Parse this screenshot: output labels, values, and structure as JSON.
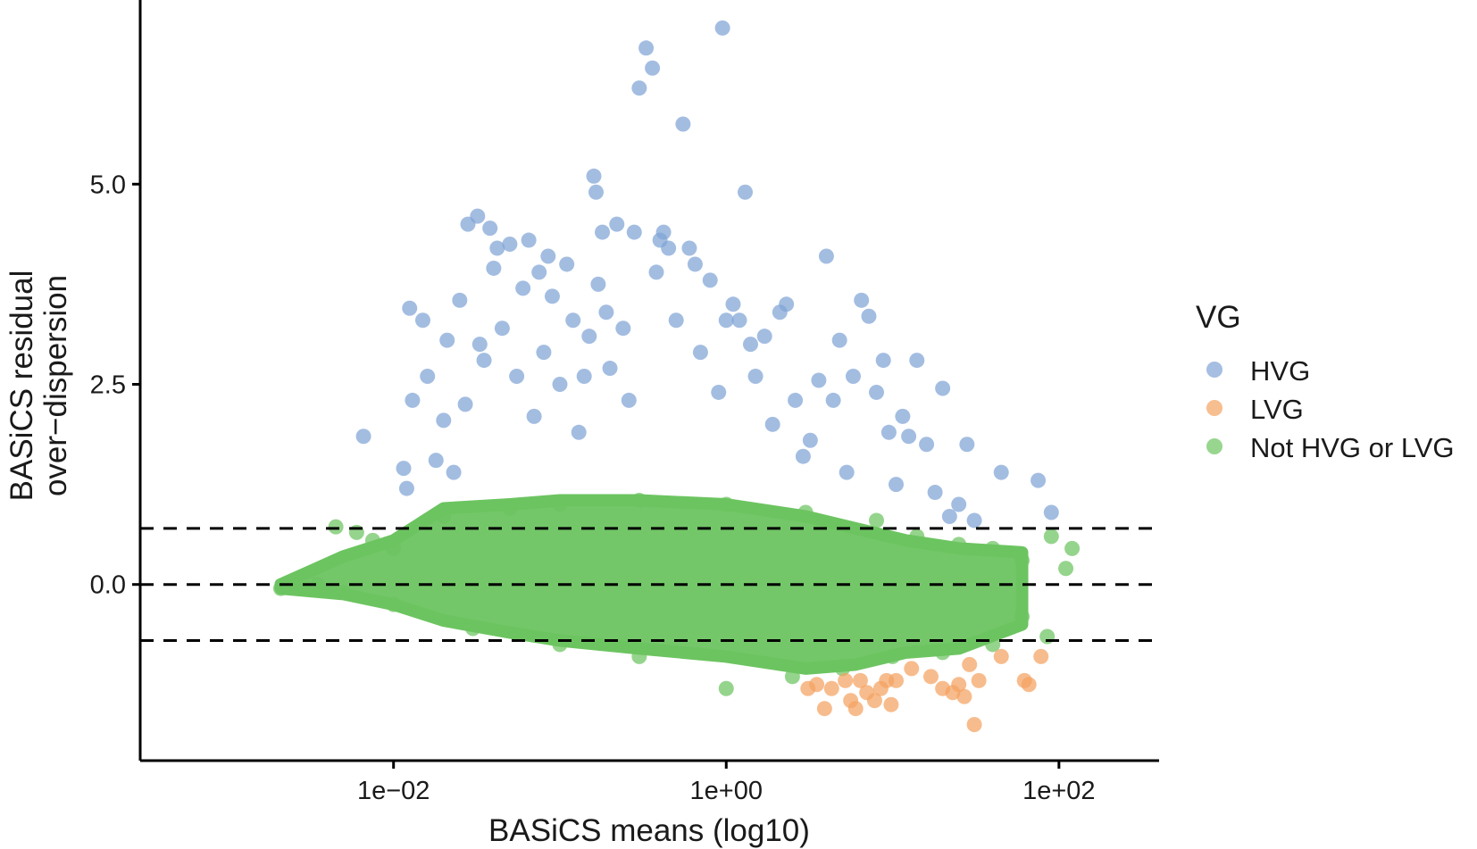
{
  "chart_data": {
    "type": "scatter",
    "title": "",
    "xlabel": "BASiCS means (log10)",
    "ylabel": [
      "BASiCS residual",
      "over−dispersion"
    ],
    "x_scale": "log10",
    "xlim": [
      0.0003,
      400
    ],
    "ylim": [
      -2.2,
      7.3
    ],
    "x_ticks": [
      {
        "value": 0.01,
        "label": "1e−02"
      },
      {
        "value": 1,
        "label": "1e+00"
      },
      {
        "value": 100,
        "label": "1e+02"
      }
    ],
    "y_ticks": [
      {
        "value": 0,
        "label": "0.0"
      },
      {
        "value": 2.5,
        "label": "2.5"
      },
      {
        "value": 5,
        "label": "5.0"
      }
    ],
    "reference_lines": [
      {
        "y": 0.7,
        "style": "dashed",
        "color": "#000000"
      },
      {
        "y": 0.0,
        "style": "dashed",
        "color": "#000000"
      },
      {
        "y": -0.7,
        "style": "dashed",
        "color": "#000000"
      }
    ],
    "grid": false,
    "legend": {
      "title": "VG",
      "position": "right",
      "entries": [
        {
          "label": "HVG",
          "color": "#7fa3d6"
        },
        {
          "label": "LVG",
          "color": "#f4a261"
        },
        {
          "label": "Not HVG or LVG",
          "color": "#6cc460"
        }
      ]
    },
    "series": [
      {
        "name": "HVG",
        "color": "#7fa3d6",
        "points": [
          [
            0.0066,
            1.85
          ],
          [
            0.0115,
            1.45
          ],
          [
            0.012,
            1.2
          ],
          [
            0.0125,
            3.45
          ],
          [
            0.013,
            2.3
          ],
          [
            0.015,
            3.3
          ],
          [
            0.016,
            2.6
          ],
          [
            0.018,
            1.55
          ],
          [
            0.02,
            2.05
          ],
          [
            0.021,
            3.05
          ],
          [
            0.023,
            1.4
          ],
          [
            0.025,
            3.55
          ],
          [
            0.027,
            2.25
          ],
          [
            0.028,
            4.5
          ],
          [
            0.032,
            4.6
          ],
          [
            0.033,
            3.0
          ],
          [
            0.035,
            2.8
          ],
          [
            0.038,
            4.45
          ],
          [
            0.04,
            3.95
          ],
          [
            0.042,
            4.2
          ],
          [
            0.045,
            3.2
          ],
          [
            0.05,
            4.25
          ],
          [
            0.055,
            2.6
          ],
          [
            0.06,
            3.7
          ],
          [
            0.065,
            4.3
          ],
          [
            0.07,
            2.1
          ],
          [
            0.075,
            3.9
          ],
          [
            0.08,
            2.9
          ],
          [
            0.085,
            4.1
          ],
          [
            0.09,
            3.6
          ],
          [
            0.1,
            2.5
          ],
          [
            0.11,
            4.0
          ],
          [
            0.12,
            3.3
          ],
          [
            0.13,
            1.9
          ],
          [
            0.14,
            2.6
          ],
          [
            0.15,
            3.1
          ],
          [
            0.16,
            5.1
          ],
          [
            0.165,
            4.9
          ],
          [
            0.17,
            3.75
          ],
          [
            0.18,
            4.4
          ],
          [
            0.19,
            3.4
          ],
          [
            0.2,
            2.7
          ],
          [
            0.22,
            4.5
          ],
          [
            0.24,
            3.2
          ],
          [
            0.26,
            2.3
          ],
          [
            0.28,
            4.4
          ],
          [
            0.3,
            6.2
          ],
          [
            0.33,
            6.7
          ],
          [
            0.36,
            6.45
          ],
          [
            0.38,
            3.9
          ],
          [
            0.4,
            4.3
          ],
          [
            0.42,
            4.4
          ],
          [
            0.45,
            4.2
          ],
          [
            0.5,
            3.3
          ],
          [
            0.55,
            5.75
          ],
          [
            0.6,
            4.2
          ],
          [
            0.65,
            4.0
          ],
          [
            0.7,
            2.9
          ],
          [
            0.8,
            3.8
          ],
          [
            0.9,
            2.4
          ],
          [
            0.95,
            6.95
          ],
          [
            1.0,
            3.3
          ],
          [
            1.1,
            3.5
          ],
          [
            1.2,
            3.3
          ],
          [
            1.3,
            4.9
          ],
          [
            1.4,
            3.0
          ],
          [
            1.5,
            2.6
          ],
          [
            1.7,
            3.1
          ],
          [
            1.9,
            2.0
          ],
          [
            2.1,
            3.4
          ],
          [
            2.3,
            3.5
          ],
          [
            2.6,
            2.3
          ],
          [
            2.9,
            1.6
          ],
          [
            3.2,
            1.8
          ],
          [
            3.6,
            2.55
          ],
          [
            4.0,
            4.1
          ],
          [
            4.4,
            2.3
          ],
          [
            4.8,
            3.05
          ],
          [
            5.3,
            1.4
          ],
          [
            5.8,
            2.6
          ],
          [
            6.5,
            3.55
          ],
          [
            7.2,
            3.35
          ],
          [
            8.0,
            2.4
          ],
          [
            8.8,
            2.8
          ],
          [
            9.5,
            1.9
          ],
          [
            10.5,
            1.25
          ],
          [
            11.5,
            2.1
          ],
          [
            12.5,
            1.85
          ],
          [
            14.0,
            2.8
          ],
          [
            16.0,
            1.75
          ],
          [
            18.0,
            1.15
          ],
          [
            20.0,
            2.45
          ],
          [
            22.0,
            0.85
          ],
          [
            25.0,
            1.0
          ],
          [
            28.0,
            1.75
          ],
          [
            31.0,
            0.8
          ],
          [
            45.0,
            1.4
          ],
          [
            75.0,
            1.3
          ],
          [
            90.0,
            0.9
          ]
        ]
      },
      {
        "name": "LVG",
        "color": "#f4a261",
        "points": [
          [
            3.1,
            -1.3
          ],
          [
            3.5,
            -1.25
          ],
          [
            3.9,
            -1.55
          ],
          [
            4.3,
            -1.3
          ],
          [
            5.2,
            -1.2
          ],
          [
            5.6,
            -1.45
          ],
          [
            6.0,
            -1.55
          ],
          [
            6.4,
            -1.2
          ],
          [
            7.0,
            -1.35
          ],
          [
            7.8,
            -1.45
          ],
          [
            8.5,
            -1.3
          ],
          [
            9.2,
            -1.2
          ],
          [
            9.8,
            -1.5
          ],
          [
            10.5,
            -1.2
          ],
          [
            13.0,
            -1.05
          ],
          [
            17.0,
            -1.15
          ],
          [
            20.0,
            -1.3
          ],
          [
            23.0,
            -1.35
          ],
          [
            25.0,
            -1.25
          ],
          [
            27.0,
            -1.4
          ],
          [
            29.0,
            -1.0
          ],
          [
            31.0,
            -1.75
          ],
          [
            33.0,
            -1.2
          ],
          [
            45.0,
            -0.9
          ],
          [
            62.0,
            -1.2
          ],
          [
            66.0,
            -1.25
          ],
          [
            78.0,
            -0.9
          ]
        ]
      },
      {
        "name": "Not HVG or LVG",
        "color": "#6cc460",
        "points": [
          [
            0.0021,
            -0.05
          ],
          [
            0.0025,
            0.0
          ],
          [
            0.003,
            -0.05
          ],
          [
            0.0035,
            0.0
          ],
          [
            0.0045,
            0.72
          ],
          [
            0.006,
            0.65
          ],
          [
            0.0075,
            0.55
          ],
          [
            0.01,
            0.45
          ],
          [
            0.02,
            0.85
          ],
          [
            0.05,
            0.95
          ],
          [
            0.1,
            1.0
          ],
          [
            0.3,
            1.05
          ],
          [
            1.0,
            1.0
          ],
          [
            3.0,
            0.9
          ],
          [
            8.0,
            0.8
          ],
          [
            14.0,
            0.6
          ],
          [
            25.0,
            0.5
          ],
          [
            40.0,
            0.45
          ],
          [
            60.0,
            0.3
          ],
          [
            90.0,
            0.6
          ],
          [
            120.0,
            0.45
          ],
          [
            110.0,
            0.2
          ],
          [
            85.0,
            -0.65
          ],
          [
            60.0,
            -0.4
          ],
          [
            40.0,
            -0.75
          ],
          [
            20.0,
            -0.85
          ],
          [
            10.0,
            -0.9
          ],
          [
            5.0,
            -1.05
          ],
          [
            2.5,
            -1.15
          ],
          [
            1.0,
            -1.3
          ],
          [
            0.3,
            -0.9
          ],
          [
            0.1,
            -0.75
          ],
          [
            0.03,
            -0.55
          ],
          [
            0.01,
            -0.25
          ],
          [
            0.005,
            -0.1
          ]
        ],
        "density_band": [
          {
            "x": 0.0021,
            "y_top": 0.0,
            "y_bottom": -0.05
          },
          {
            "x": 0.005,
            "y_top": 0.35,
            "y_bottom": -0.12
          },
          {
            "x": 0.01,
            "y_top": 0.55,
            "y_bottom": -0.25
          },
          {
            "x": 0.02,
            "y_top": 0.95,
            "y_bottom": -0.45
          },
          {
            "x": 0.05,
            "y_top": 1.0,
            "y_bottom": -0.6
          },
          {
            "x": 0.1,
            "y_top": 1.05,
            "y_bottom": -0.7
          },
          {
            "x": 0.3,
            "y_top": 1.05,
            "y_bottom": -0.8
          },
          {
            "x": 1.0,
            "y_top": 1.0,
            "y_bottom": -0.9
          },
          {
            "x": 3.0,
            "y_top": 0.85,
            "y_bottom": -1.05
          },
          {
            "x": 6.0,
            "y_top": 0.7,
            "y_bottom": -1.0
          },
          {
            "x": 12.0,
            "y_top": 0.55,
            "y_bottom": -0.85
          },
          {
            "x": 25.0,
            "y_top": 0.45,
            "y_bottom": -0.8
          },
          {
            "x": 60.0,
            "y_top": 0.4,
            "y_bottom": -0.5
          }
        ]
      }
    ]
  }
}
